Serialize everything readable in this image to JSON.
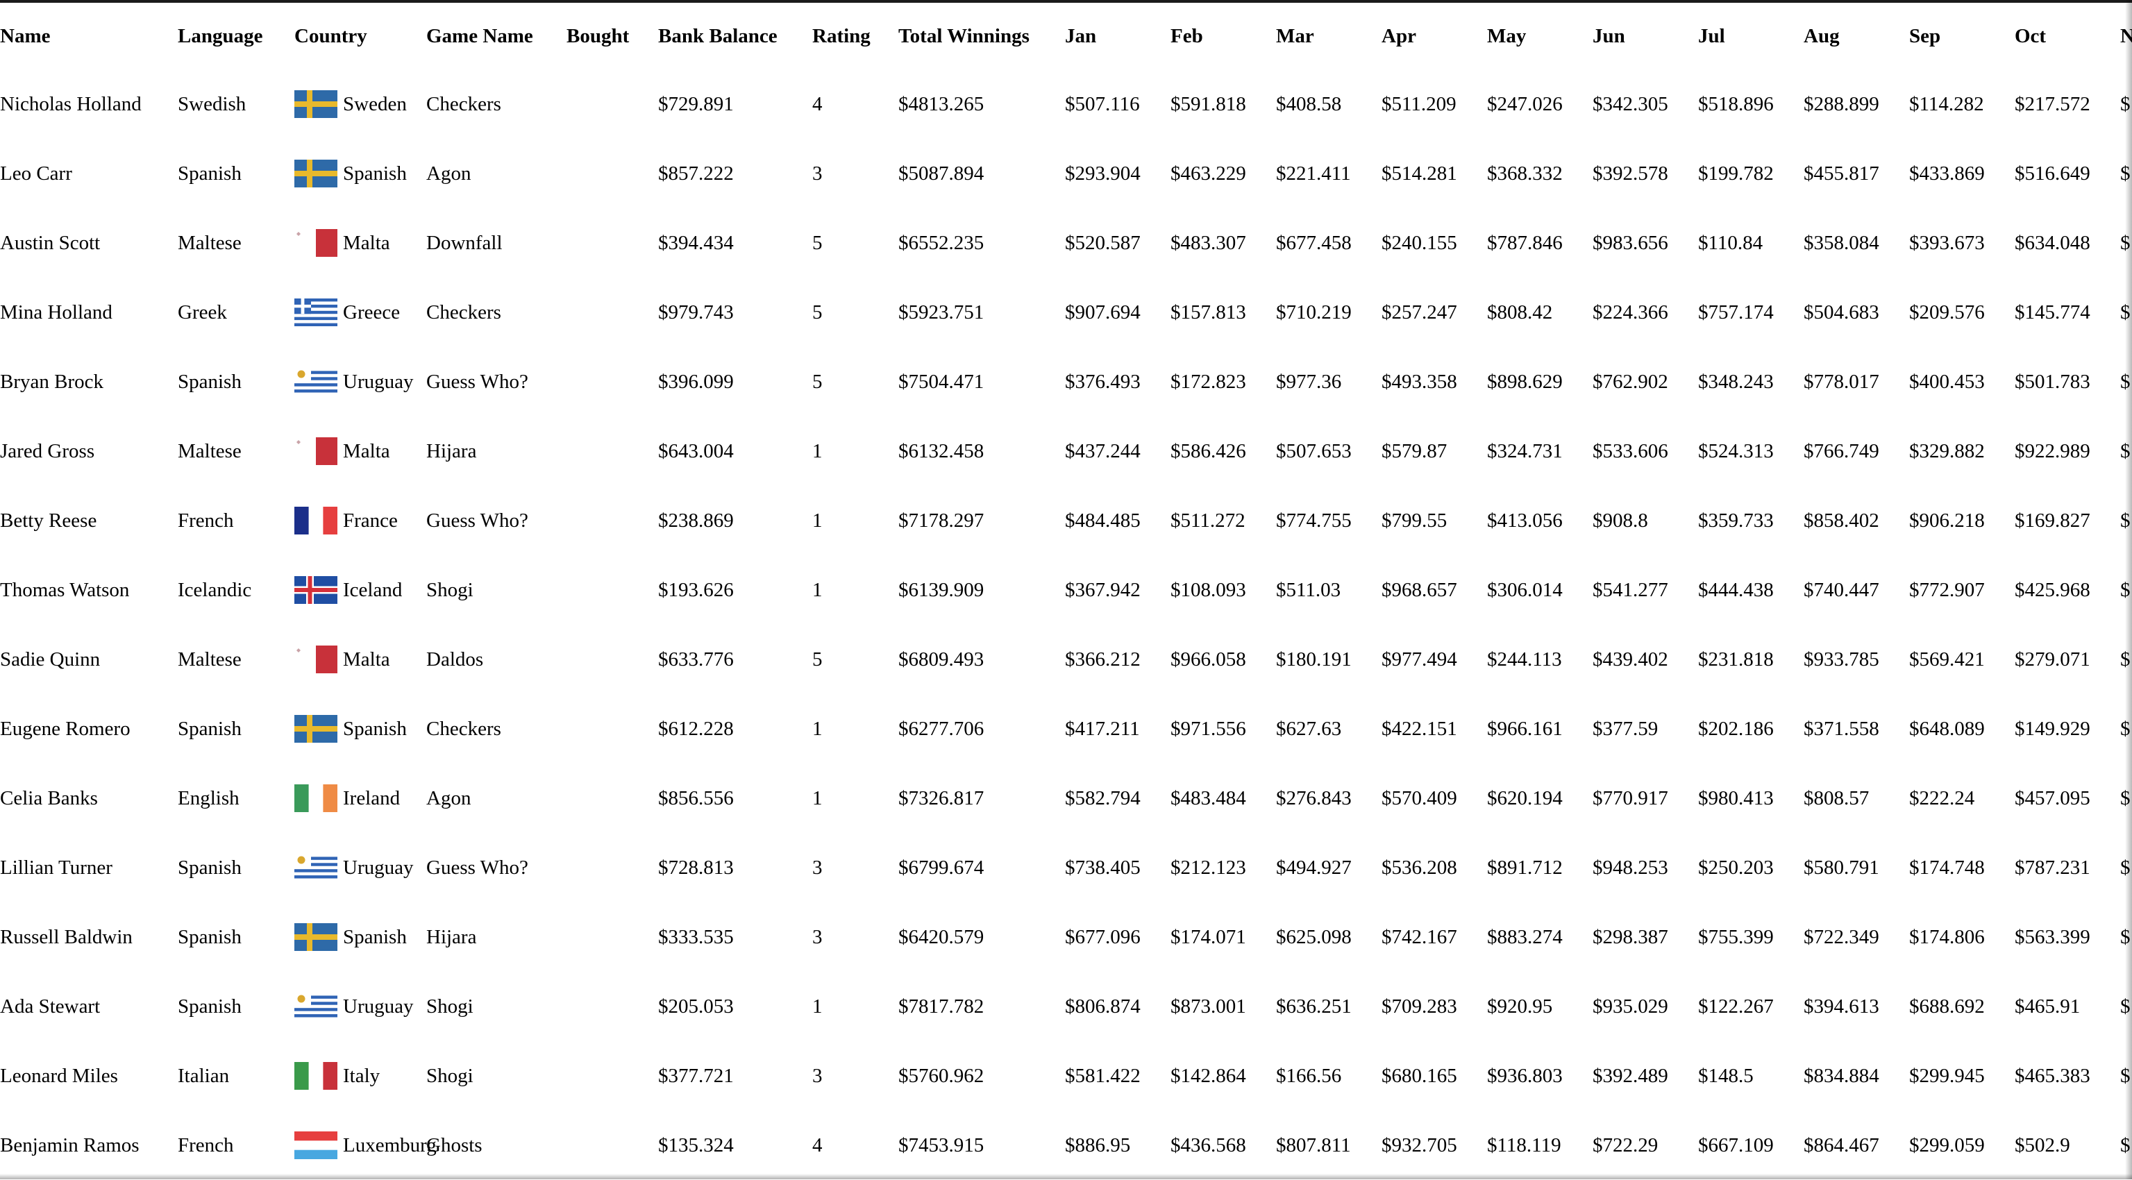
{
  "columns": [
    "Name",
    "Language",
    "Country",
    "Game Name",
    "Bought",
    "Bank Balance",
    "Rating",
    "Total Winnings",
    "Jan",
    "Feb",
    "Mar",
    "Apr",
    "May",
    "Jun",
    "Jul",
    "Aug",
    "Sep",
    "Oct",
    "N"
  ],
  "rows": [
    {
      "name": "Nicholas Holland",
      "language": "Swedish",
      "flag": "sweden-flag",
      "country": "Sweden",
      "game": "Checkers",
      "bought": "",
      "bank": "$729.891",
      "rating": "4",
      "total": "$4813.265",
      "months": [
        "$507.116",
        "$591.818",
        "$408.58",
        "$511.209",
        "$247.026",
        "$342.305",
        "$518.896",
        "$288.899",
        "$114.282",
        "$217.572"
      ],
      "next": "$"
    },
    {
      "name": "Leo Carr",
      "language": "Spanish",
      "flag": "sweden-flag",
      "country": "Spanish",
      "game": "Agon",
      "bought": "",
      "bank": "$857.222",
      "rating": "3",
      "total": "$5087.894",
      "months": [
        "$293.904",
        "$463.229",
        "$221.411",
        "$514.281",
        "$368.332",
        "$392.578",
        "$199.782",
        "$455.817",
        "$433.869",
        "$516.649"
      ],
      "next": "$"
    },
    {
      "name": "Austin Scott",
      "language": "Maltese",
      "flag": "malta-flag",
      "country": "Malta",
      "game": "Downfall",
      "bought": "",
      "bank": "$394.434",
      "rating": "5",
      "total": "$6552.235",
      "months": [
        "$520.587",
        "$483.307",
        "$677.458",
        "$240.155",
        "$787.846",
        "$983.656",
        "$110.84",
        "$358.084",
        "$393.673",
        "$634.048"
      ],
      "next": "$"
    },
    {
      "name": "Mina Holland",
      "language": "Greek",
      "flag": "greece-flag",
      "country": "Greece",
      "game": "Checkers",
      "bought": "",
      "bank": "$979.743",
      "rating": "5",
      "total": "$5923.751",
      "months": [
        "$907.694",
        "$157.813",
        "$710.219",
        "$257.247",
        "$808.42",
        "$224.366",
        "$757.174",
        "$504.683",
        "$209.576",
        "$145.774"
      ],
      "next": "$"
    },
    {
      "name": "Bryan Brock",
      "language": "Spanish",
      "flag": "uruguay-flag",
      "country": "Uruguay",
      "game": "Guess Who?",
      "bought": "",
      "bank": "$396.099",
      "rating": "5",
      "total": "$7504.471",
      "months": [
        "$376.493",
        "$172.823",
        "$977.36",
        "$493.358",
        "$898.629",
        "$762.902",
        "$348.243",
        "$778.017",
        "$400.453",
        "$501.783"
      ],
      "next": "$"
    },
    {
      "name": "Jared Gross",
      "language": "Maltese",
      "flag": "malta-flag",
      "country": "Malta",
      "game": "Hijara",
      "bought": "",
      "bank": "$643.004",
      "rating": "1",
      "total": "$6132.458",
      "months": [
        "$437.244",
        "$586.426",
        "$507.653",
        "$579.87",
        "$324.731",
        "$533.606",
        "$524.313",
        "$766.749",
        "$329.882",
        "$922.989"
      ],
      "next": "$"
    },
    {
      "name": "Betty Reese",
      "language": "French",
      "flag": "france-flag",
      "country": "France",
      "game": "Guess Who?",
      "bought": "",
      "bank": "$238.869",
      "rating": "1",
      "total": "$7178.297",
      "months": [
        "$484.485",
        "$511.272",
        "$774.755",
        "$799.55",
        "$413.056",
        "$908.8",
        "$359.733",
        "$858.402",
        "$906.218",
        "$169.827"
      ],
      "next": "$"
    },
    {
      "name": "Thomas Watson",
      "language": "Icelandic",
      "flag": "iceland-flag",
      "country": "Iceland",
      "game": "Shogi",
      "bought": "",
      "bank": "$193.626",
      "rating": "1",
      "total": "$6139.909",
      "months": [
        "$367.942",
        "$108.093",
        "$511.03",
        "$968.657",
        "$306.014",
        "$541.277",
        "$444.438",
        "$740.447",
        "$772.907",
        "$425.968"
      ],
      "next": "$"
    },
    {
      "name": "Sadie Quinn",
      "language": "Maltese",
      "flag": "malta-flag",
      "country": "Malta",
      "game": "Daldos",
      "bought": "",
      "bank": "$633.776",
      "rating": "5",
      "total": "$6809.493",
      "months": [
        "$366.212",
        "$966.058",
        "$180.191",
        "$977.494",
        "$244.113",
        "$439.402",
        "$231.818",
        "$933.785",
        "$569.421",
        "$279.071"
      ],
      "next": "$"
    },
    {
      "name": "Eugene Romero",
      "language": "Spanish",
      "flag": "sweden-flag",
      "country": "Spanish",
      "game": "Checkers",
      "bought": "",
      "bank": "$612.228",
      "rating": "1",
      "total": "$6277.706",
      "months": [
        "$417.211",
        "$971.556",
        "$627.63",
        "$422.151",
        "$966.161",
        "$377.59",
        "$202.186",
        "$371.558",
        "$648.089",
        "$149.929"
      ],
      "next": "$"
    },
    {
      "name": "Celia Banks",
      "language": "English",
      "flag": "ireland-flag",
      "country": "Ireland",
      "game": "Agon",
      "bought": "",
      "bank": "$856.556",
      "rating": "1",
      "total": "$7326.817",
      "months": [
        "$582.794",
        "$483.484",
        "$276.843",
        "$570.409",
        "$620.194",
        "$770.917",
        "$980.413",
        "$808.57",
        "$222.24",
        "$457.095"
      ],
      "next": "$"
    },
    {
      "name": "Lillian Turner",
      "language": "Spanish",
      "flag": "uruguay-flag",
      "country": "Uruguay",
      "game": "Guess Who?",
      "bought": "",
      "bank": "$728.813",
      "rating": "3",
      "total": "$6799.674",
      "months": [
        "$738.405",
        "$212.123",
        "$494.927",
        "$536.208",
        "$891.712",
        "$948.253",
        "$250.203",
        "$580.791",
        "$174.748",
        "$787.231"
      ],
      "next": "$"
    },
    {
      "name": "Russell Baldwin",
      "language": "Spanish",
      "flag": "sweden-flag",
      "country": "Spanish",
      "game": "Hijara",
      "bought": "",
      "bank": "$333.535",
      "rating": "3",
      "total": "$6420.579",
      "months": [
        "$677.096",
        "$174.071",
        "$625.098",
        "$742.167",
        "$883.274",
        "$298.387",
        "$755.399",
        "$722.349",
        "$174.806",
        "$563.399"
      ],
      "next": "$"
    },
    {
      "name": "Ada Stewart",
      "language": "Spanish",
      "flag": "uruguay-flag",
      "country": "Uruguay",
      "game": "Shogi",
      "bought": "",
      "bank": "$205.053",
      "rating": "1",
      "total": "$7817.782",
      "months": [
        "$806.874",
        "$873.001",
        "$636.251",
        "$709.283",
        "$920.95",
        "$935.029",
        "$122.267",
        "$394.613",
        "$688.692",
        "$465.91"
      ],
      "next": "$"
    },
    {
      "name": "Leonard Miles",
      "language": "Italian",
      "flag": "italy-flag",
      "country": "Italy",
      "game": "Shogi",
      "bought": "",
      "bank": "$377.721",
      "rating": "3",
      "total": "$5760.962",
      "months": [
        "$581.422",
        "$142.864",
        "$166.56",
        "$680.165",
        "$936.803",
        "$392.489",
        "$148.5",
        "$834.884",
        "$299.945",
        "$465.383"
      ],
      "next": "$"
    },
    {
      "name": "Benjamin Ramos",
      "language": "French",
      "flag": "luxembourg-flag",
      "country": "Luxemburg",
      "game": "Ghosts",
      "bought": "",
      "bank": "$135.324",
      "rating": "4",
      "total": "$7453.915",
      "months": [
        "$886.95",
        "$436.568",
        "$807.811",
        "$932.705",
        "$118.119",
        "$722.29",
        "$667.109",
        "$864.467",
        "$299.059",
        "$502.9"
      ],
      "next": "$"
    }
  ]
}
